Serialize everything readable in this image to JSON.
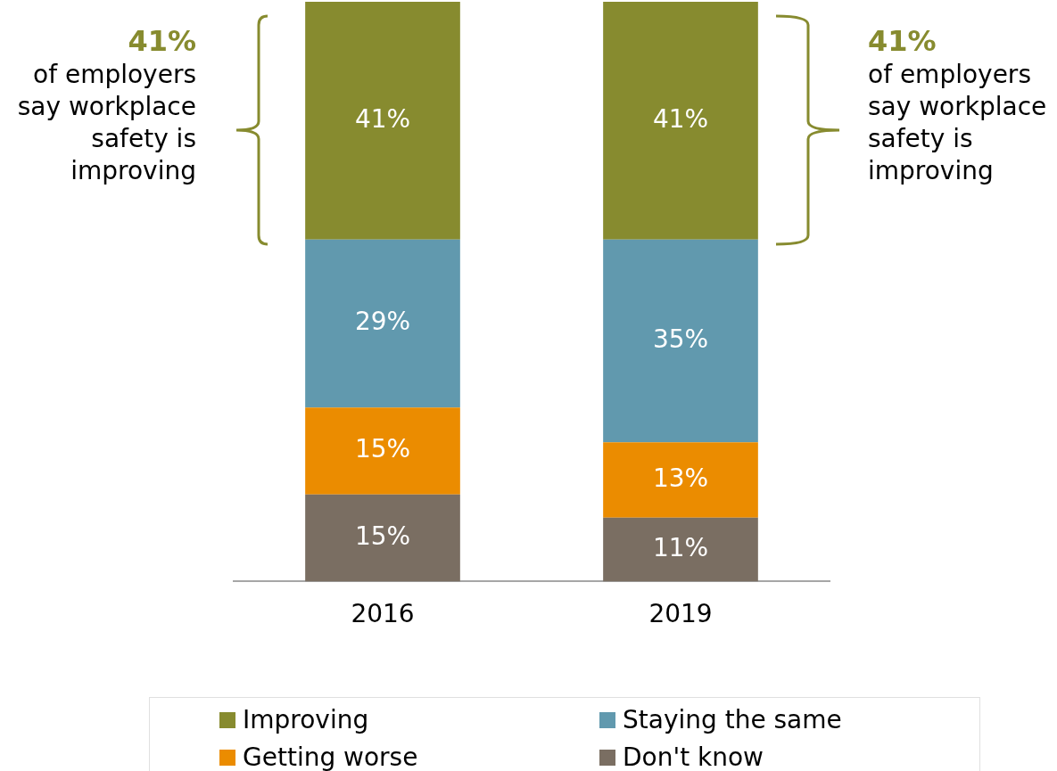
{
  "chart_data": {
    "type": "bar",
    "stacked": true,
    "categories": [
      "2016",
      "2019"
    ],
    "ylim": [
      0,
      100
    ],
    "tick_labels": "x",
    "grid": false,
    "legend": "bottom",
    "series": [
      {
        "name": "Don't know",
        "color": "#7a6e62",
        "values": [
          15,
          11
        ],
        "value_labels": [
          "15%",
          "11%"
        ]
      },
      {
        "name": "Getting worse",
        "color": "#eb8c00",
        "values": [
          15,
          13
        ],
        "value_labels": [
          "15%",
          "13%"
        ]
      },
      {
        "name": "Staying the same",
        "color": "#6199ae",
        "values": [
          29,
          35
        ],
        "value_labels": [
          "29%",
          "35%"
        ]
      },
      {
        "name": "Improving",
        "color": "#878b2f",
        "values": [
          41,
          41
        ],
        "value_labels": [
          "41%",
          "41%"
        ]
      }
    ],
    "annotations": [
      "41% of employers say workplace safety is improving",
      "41% of employers say workplace safety is improving"
    ]
  }
}
